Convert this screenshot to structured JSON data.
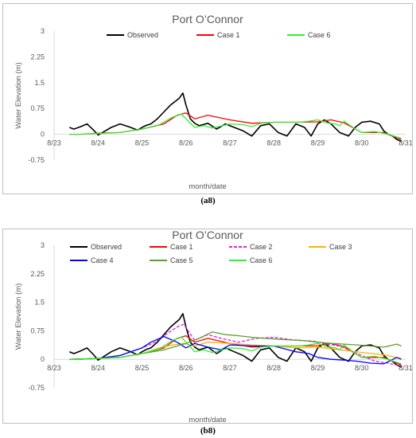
{
  "panels": [
    {
      "title": "Port O’Connor",
      "caption": "(a8)",
      "chart_data": {
        "type": "line",
        "title": "Port O’Connor",
        "xlabel": "month/date",
        "ylabel": "Water Elevation (m)",
        "xlim": [
          0,
          8
        ],
        "ylim": [
          -0.75,
          3
        ],
        "x_ticks": [
          "8/23",
          "8/24",
          "8/25",
          "8/26",
          "8/27",
          "8/28",
          "8/29",
          "8/30",
          "8/31"
        ],
        "y_ticks": [
          "-0.75",
          "0",
          "0.75",
          "1.5",
          "2.25",
          "3"
        ],
        "grid": false,
        "legend": "top",
        "series": [
          {
            "name": "Observed",
            "color": "#000000",
            "dash": false,
            "x": [
              0.35,
              0.45,
              0.6,
              0.75,
              0.9,
              1.0,
              1.1,
              1.3,
              1.5,
              1.7,
              1.9,
              2.0,
              2.1,
              2.2,
              2.35,
              2.5,
              2.65,
              2.75,
              2.85,
              2.93,
              3.0,
              3.1,
              3.2,
              3.3,
              3.5,
              3.7,
              3.9,
              4.1,
              4.3,
              4.5,
              4.7,
              4.9,
              5.1,
              5.3,
              5.5,
              5.7,
              5.85,
              6.0,
              6.15,
              6.3,
              6.5,
              6.7,
              6.85,
              7.0,
              7.2,
              7.4,
              7.5,
              7.6,
              7.7,
              7.8,
              7.9
            ],
            "y": [
              0.2,
              0.15,
              0.22,
              0.3,
              0.12,
              -0.02,
              0.05,
              0.2,
              0.3,
              0.22,
              0.12,
              0.2,
              0.26,
              0.3,
              0.45,
              0.65,
              0.85,
              0.95,
              1.05,
              1.2,
              0.85,
              0.45,
              0.32,
              0.25,
              0.32,
              0.15,
              0.3,
              0.2,
              0.1,
              -0.05,
              0.25,
              0.3,
              0.05,
              -0.05,
              0.3,
              0.2,
              -0.05,
              0.3,
              0.42,
              0.3,
              0.05,
              -0.05,
              0.2,
              0.35,
              0.38,
              0.3,
              0.1,
              0.0,
              -0.05,
              -0.15,
              -0.2
            ]
          },
          {
            "name": "Case 1",
            "color": "#ff0000",
            "dash": false,
            "x": [
              0.35,
              0.6,
              1.0,
              1.5,
              2.0,
              2.5,
              2.8,
              3.0,
              3.2,
              3.5,
              4.0,
              4.5,
              5.0,
              5.5,
              6.0,
              6.3,
              6.6,
              7.0,
              7.5,
              7.9
            ],
            "y": [
              0.0,
              0.0,
              0.03,
              0.05,
              0.15,
              0.3,
              0.55,
              0.62,
              0.45,
              0.55,
              0.42,
              0.32,
              0.35,
              0.35,
              0.36,
              0.42,
              0.33,
              0.05,
              0.05,
              -0.15
            ]
          },
          {
            "name": "Case 6",
            "color": "#33ee33",
            "dash": false,
            "x": [
              0.35,
              0.6,
              1.0,
              1.5,
              2.0,
              2.4,
              2.7,
              2.9,
              3.0,
              3.2,
              3.4,
              3.6,
              4.0,
              4.3,
              4.5,
              4.7,
              5.0,
              5.3,
              5.6,
              5.8,
              6.0,
              6.2,
              6.4,
              6.5,
              6.6,
              6.8,
              7.0,
              7.3,
              7.6,
              7.9
            ],
            "y": [
              0.0,
              0.0,
              0.02,
              0.05,
              0.15,
              0.28,
              0.5,
              0.58,
              0.45,
              0.2,
              0.25,
              0.18,
              0.3,
              0.28,
              0.22,
              0.32,
              0.35,
              0.35,
              0.35,
              0.38,
              0.42,
              0.33,
              0.3,
              0.25,
              0.38,
              0.2,
              0.05,
              0.08,
              0.0,
              -0.12
            ]
          }
        ]
      }
    },
    {
      "title": "Port O’Connor",
      "caption": "(b8)",
      "chart_data": {
        "type": "line",
        "title": "Port O’Connor",
        "xlabel": "month/date",
        "ylabel": "Water Elevation (m)",
        "xlim": [
          0,
          8
        ],
        "ylim": [
          -0.75,
          3
        ],
        "x_ticks": [
          "8/23",
          "8/24",
          "8/25",
          "8/26",
          "8/27",
          "8/28",
          "8/29",
          "8/30",
          "8/31"
        ],
        "y_ticks": [
          "-0.75",
          "0",
          "0.75",
          "1.5",
          "2.25",
          "3"
        ],
        "grid": false,
        "legend": "top",
        "series": [
          {
            "name": "Observed",
            "color": "#000000",
            "dash": false,
            "x": [
              0.35,
              0.45,
              0.6,
              0.75,
              0.9,
              1.0,
              1.1,
              1.3,
              1.5,
              1.7,
              1.9,
              2.0,
              2.1,
              2.2,
              2.35,
              2.5,
              2.65,
              2.75,
              2.85,
              2.93,
              3.0,
              3.1,
              3.2,
              3.3,
              3.5,
              3.7,
              3.9,
              4.1,
              4.3,
              4.5,
              4.7,
              4.9,
              5.1,
              5.3,
              5.5,
              5.7,
              5.85,
              6.0,
              6.15,
              6.3,
              6.5,
              6.7,
              6.85,
              7.0,
              7.2,
              7.4,
              7.5,
              7.6,
              7.7,
              7.8,
              7.9
            ],
            "y": [
              0.2,
              0.15,
              0.22,
              0.3,
              0.12,
              -0.02,
              0.05,
              0.2,
              0.3,
              0.22,
              0.12,
              0.2,
              0.26,
              0.3,
              0.45,
              0.65,
              0.85,
              0.95,
              1.05,
              1.2,
              0.85,
              0.45,
              0.32,
              0.25,
              0.32,
              0.15,
              0.3,
              0.2,
              0.1,
              -0.05,
              0.25,
              0.3,
              0.05,
              -0.05,
              0.3,
              0.2,
              -0.05,
              0.3,
              0.42,
              0.3,
              0.05,
              -0.05,
              0.2,
              0.35,
              0.38,
              0.3,
              0.1,
              0.0,
              -0.05,
              -0.15,
              -0.2
            ]
          },
          {
            "name": "Case 1",
            "color": "#ff0000",
            "dash": false,
            "x": [
              0.35,
              0.6,
              1.0,
              1.5,
              2.0,
              2.5,
              2.8,
              3.0,
              3.2,
              3.5,
              4.0,
              4.5,
              5.0,
              5.5,
              6.0,
              6.3,
              6.6,
              7.0,
              7.5,
              7.9
            ],
            "y": [
              0.0,
              0.0,
              0.03,
              0.05,
              0.15,
              0.3,
              0.55,
              0.62,
              0.45,
              0.55,
              0.42,
              0.32,
              0.35,
              0.35,
              0.36,
              0.42,
              0.33,
              0.05,
              0.05,
              -0.15
            ]
          },
          {
            "name": "Case 2",
            "color": "#e020e0",
            "dash": true,
            "x": [
              0.35,
              1.0,
              1.5,
              2.0,
              2.3,
              2.6,
              2.8,
              2.95,
              3.05,
              3.2,
              3.5,
              3.8,
              4.2,
              4.6,
              5.0,
              5.5,
              5.9,
              6.2,
              6.5,
              6.8,
              7.0,
              7.3,
              7.6,
              7.9
            ],
            "y": [
              0.0,
              0.02,
              0.1,
              0.3,
              0.45,
              0.7,
              0.85,
              0.92,
              0.75,
              0.5,
              0.65,
              0.55,
              0.45,
              0.55,
              0.58,
              0.5,
              0.48,
              0.4,
              0.35,
              0.2,
              0.1,
              -0.05,
              -0.1,
              -0.18
            ]
          },
          {
            "name": "Case 3",
            "color": "#ffb000",
            "dash": false,
            "x": [
              0.35,
              1.0,
              1.5,
              2.0,
              2.4,
              2.7,
              2.95,
              3.2,
              3.5,
              4.0,
              4.5,
              5.0,
              5.5,
              6.0,
              6.5,
              7.0,
              7.5,
              7.9
            ],
            "y": [
              0.0,
              0.02,
              0.05,
              0.15,
              0.3,
              0.38,
              0.42,
              0.35,
              0.45,
              0.42,
              0.38,
              0.35,
              0.3,
              0.32,
              0.25,
              0.18,
              0.12,
              0.02
            ]
          },
          {
            "name": "Case 4",
            "color": "#0000ff",
            "dash": false,
            "x": [
              0.35,
              1.0,
              1.5,
              2.0,
              2.2,
              2.5,
              2.8,
              3.0,
              3.2,
              3.5,
              3.8,
              4.0,
              4.5,
              5.0,
              5.5,
              5.8,
              6.0,
              6.3,
              6.6,
              6.9,
              7.2,
              7.5,
              7.8,
              7.9
            ],
            "y": [
              0.0,
              0.02,
              0.1,
              0.3,
              0.45,
              0.6,
              0.45,
              0.3,
              0.42,
              0.32,
              0.25,
              0.38,
              0.35,
              0.35,
              0.2,
              0.15,
              0.05,
              0.0,
              -0.02,
              -0.05,
              -0.1,
              -0.12,
              0.05,
              0.0
            ]
          },
          {
            "name": "Case 5",
            "color": "#5aa02c",
            "dash": false,
            "x": [
              0.35,
              1.0,
              1.5,
              2.0,
              2.5,
              2.8,
              3.0,
              3.3,
              3.6,
              3.9,
              4.2,
              4.5,
              4.8,
              5.2,
              5.6,
              6.0,
              6.3,
              6.6,
              6.9,
              7.2,
              7.5,
              7.8,
              7.9
            ],
            "y": [
              0.0,
              0.02,
              0.05,
              0.15,
              0.25,
              0.35,
              0.42,
              0.55,
              0.72,
              0.65,
              0.62,
              0.58,
              0.55,
              0.52,
              0.5,
              0.45,
              0.42,
              0.4,
              0.38,
              0.35,
              0.32,
              0.4,
              0.35
            ]
          },
          {
            "name": "Case 6",
            "color": "#33ee33",
            "dash": false,
            "x": [
              0.35,
              0.6,
              1.0,
              1.5,
              2.0,
              2.4,
              2.7,
              2.9,
              3.0,
              3.2,
              3.4,
              3.6,
              4.0,
              4.3,
              4.5,
              4.7,
              5.0,
              5.3,
              5.6,
              5.8,
              6.0,
              6.2,
              6.4,
              6.5,
              6.6,
              6.8,
              7.0,
              7.3,
              7.6,
              7.9
            ],
            "y": [
              0.0,
              0.0,
              0.02,
              0.05,
              0.15,
              0.28,
              0.5,
              0.58,
              0.45,
              0.2,
              0.25,
              0.18,
              0.3,
              0.28,
              0.22,
              0.32,
              0.35,
              0.35,
              0.35,
              0.38,
              0.42,
              0.33,
              0.3,
              0.25,
              0.38,
              0.2,
              0.05,
              0.08,
              0.0,
              -0.12
            ]
          }
        ]
      }
    }
  ]
}
